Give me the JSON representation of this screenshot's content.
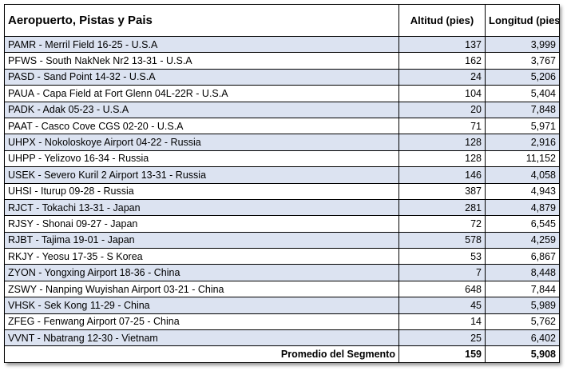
{
  "table": {
    "headers": [
      "Aeropuerto, Pistas y Pais",
      "Altitud (pies)",
      "Longitud (pies)"
    ],
    "rows": [
      [
        "PAMR - Merril Field 16-25 - U.S.A",
        "137",
        "3,999"
      ],
      [
        "PFWS - South NakNek Nr2 13-31 - U.S.A",
        "162",
        "3,767"
      ],
      [
        "PASD - Sand Point 14-32 - U.S.A",
        "24",
        "5,206"
      ],
      [
        "PAUA - Capa Field at Fort Glenn 04L-22R - U.S.A",
        "104",
        "5,404"
      ],
      [
        "PADK - Adak 05-23 - U.S.A",
        "20",
        "7,848"
      ],
      [
        "PAAT - Casco Cove CGS 02-20 - U.S.A",
        "71",
        "5,971"
      ],
      [
        "UHPX - Nokoloskoye Airport 04-22 - Russia",
        "128",
        "2,916"
      ],
      [
        "UHPP - Yelizovo 16-34 - Russia",
        "128",
        "11,152"
      ],
      [
        "USEK - Severo Kuril 2 Airport 13-31 - Russia",
        "146",
        "4,058"
      ],
      [
        "UHSI - Iturup 09-28 - Russia",
        "387",
        "4,943"
      ],
      [
        "RJCT - Tokachi 13-31 - Japan",
        "281",
        "4,879"
      ],
      [
        "RJSY - Shonai 09-27 - Japan",
        "72",
        "6,545"
      ],
      [
        "RJBT - Tajima 19-01 - Japan",
        "578",
        "4,259"
      ],
      [
        "RKJY - Yeosu 17-35 - S Korea",
        "53",
        "6,867"
      ],
      [
        "ZYON - Yongxing Airport 18-36 - China",
        "7",
        "8,448"
      ],
      [
        "ZSWY - Nanping Wuyishan Airport 03-21 - China",
        "648",
        "7,844"
      ],
      [
        "VHSK - Sek Kong 11-29 - China",
        "45",
        "5,989"
      ],
      [
        "ZFEG - Fenwang Airport 07-25 - China",
        "14",
        "5,762"
      ],
      [
        "VVNT - Nbatrang 12-30 - Vietnam",
        "25",
        "6,402"
      ]
    ],
    "footer": [
      "Promedio del Segmento",
      "159",
      "5,908"
    ]
  }
}
